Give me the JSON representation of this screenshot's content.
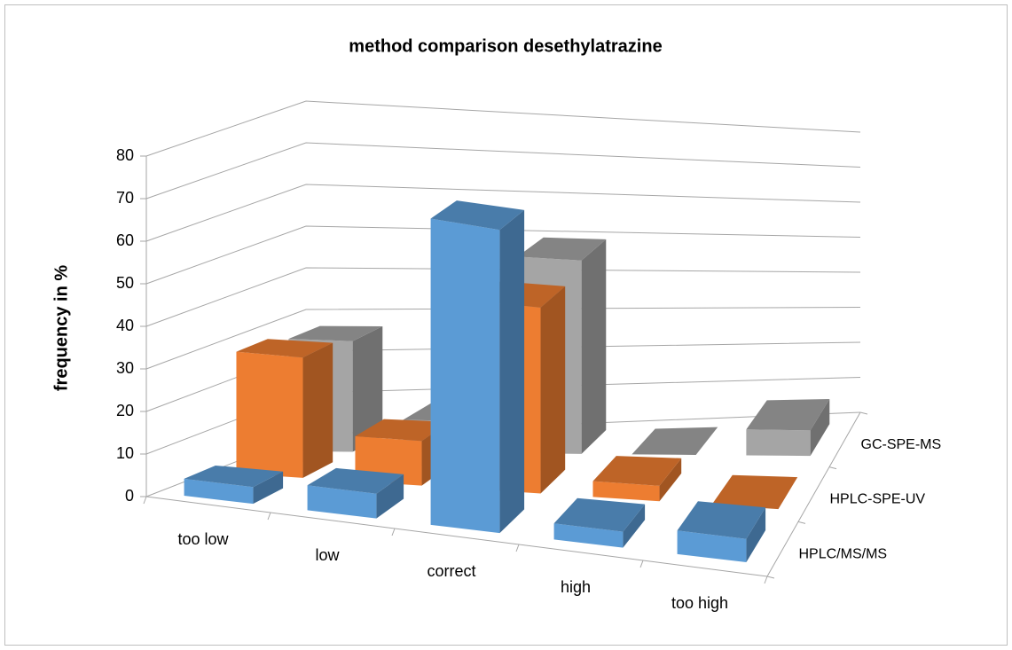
{
  "chart_data": {
    "type": "bar3d",
    "title": "method comparison desethylatrazine",
    "y_label": "frequency in %",
    "categories": [
      "too low",
      "low",
      "correct",
      "high",
      "too high"
    ],
    "series": [
      {
        "name": "HPLC/MS/MS",
        "color": "#5b9bd5",
        "values": [
          4,
          6,
          75,
          4,
          6
        ]
      },
      {
        "name": "HPLC-SPE-UV",
        "color": "#ed7d31",
        "values": [
          29,
          11,
          47,
          4,
          0
        ]
      },
      {
        "name": "GC-SPE-MS",
        "color": "#a5a5a5",
        "values": [
          27,
          8,
          50,
          0,
          7
        ]
      }
    ],
    "ylim": [
      0,
      80
    ],
    "yticks": [
      0,
      10,
      20,
      30,
      40,
      50,
      60,
      70,
      80
    ],
    "grid": true
  }
}
